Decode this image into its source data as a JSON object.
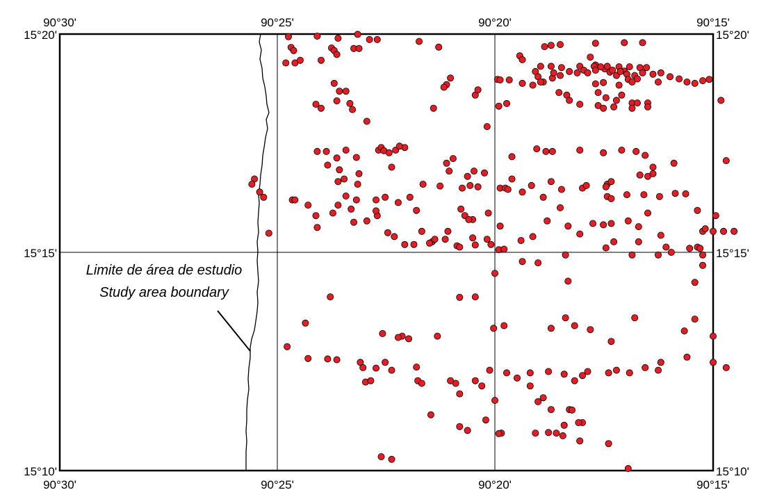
{
  "map": {
    "extent": {
      "lon_west": -90.5,
      "lon_east": -90.25,
      "lat_south": 15.1667,
      "lat_north": 15.3333
    },
    "colors": {
      "point_fill": "#e31e24",
      "point_stroke": "#000000",
      "frame": "#000000",
      "background": "#ffffff"
    },
    "top_ticks": [
      "90°30'",
      "90°25'",
      "90°20'",
      "90°15'"
    ],
    "bottom_ticks": [
      "90°30'",
      "90°25'",
      "90°20'",
      "90°15'"
    ],
    "left_ticks": [
      "15°20'",
      "15°15'",
      "15°10'"
    ],
    "right_ticks": [
      "15°20'",
      "15°15'",
      "15°10'"
    ],
    "annotation": {
      "line1": "Limite de área de estudio",
      "line2": "Study area boundary"
    },
    "grid_lines": {
      "lon": [
        -90.4167,
        -90.3333
      ],
      "lat": [
        15.25
      ]
    },
    "points": [
      [
        -90.4125,
        15.3323
      ],
      [
        -90.4015,
        15.3325
      ],
      [
        -90.3935,
        15.3317
      ],
      [
        -90.386,
        15.3332
      ],
      [
        -90.3815,
        15.3312
      ],
      [
        -90.3785,
        15.3312
      ],
      [
        -90.3625,
        15.3305
      ],
      [
        -90.355,
        15.3283
      ],
      [
        -90.3145,
        15.3285
      ],
      [
        -90.312,
        15.329
      ],
      [
        -90.3085,
        15.3293
      ],
      [
        -90.295,
        15.3298
      ],
      [
        -90.284,
        15.33
      ],
      [
        -90.277,
        15.33
      ],
      [
        -90.4115,
        15.3282
      ],
      [
        -90.4105,
        15.327
      ],
      [
        -90.396,
        15.328
      ],
      [
        -90.395,
        15.327
      ],
      [
        -90.3875,
        15.3278
      ],
      [
        -90.3855,
        15.3278
      ],
      [
        -90.4135,
        15.3223
      ],
      [
        -90.41,
        15.3223
      ],
      [
        -90.408,
        15.3233
      ],
      [
        -90.4,
        15.3233
      ],
      [
        -90.394,
        15.3255
      ],
      [
        -90.324,
        15.325
      ],
      [
        -90.323,
        15.3235
      ],
      [
        -90.316,
        15.321
      ],
      [
        -90.312,
        15.321
      ],
      [
        -90.308,
        15.3205
      ],
      [
        -90.302,
        15.3185
      ],
      [
        -90.297,
        15.3245
      ],
      [
        -90.295,
        15.3215
      ],
      [
        -90.2915,
        15.32
      ],
      [
        -90.2895,
        15.3188
      ],
      [
        -90.286,
        15.3208
      ],
      [
        -90.284,
        15.3192
      ],
      [
        -90.282,
        15.3208
      ],
      [
        -90.278,
        15.3205
      ],
      [
        -90.273,
        15.318
      ],
      [
        -90.27,
        15.3185
      ],
      [
        -90.318,
        15.319
      ],
      [
        -90.317,
        15.317
      ],
      [
        -90.315,
        15.315
      ],
      [
        -90.3115,
        15.3165
      ],
      [
        -90.311,
        15.3185
      ],
      [
        -90.3085,
        15.3175
      ],
      [
        -90.305,
        15.319
      ],
      [
        -90.301,
        15.321
      ],
      [
        -90.2995,
        15.3195
      ],
      [
        -90.298,
        15.3185
      ],
      [
        -90.2955,
        15.321
      ],
      [
        -90.295,
        15.3195
      ],
      [
        -90.293,
        15.3208
      ],
      [
        -90.2905,
        15.321
      ],
      [
        -90.2885,
        15.3195
      ],
      [
        -90.287,
        15.3175
      ],
      [
        -90.2855,
        15.319
      ],
      [
        -90.283,
        15.318
      ],
      [
        -90.28,
        15.3175
      ],
      [
        -90.277,
        15.3185
      ],
      [
        -90.2755,
        15.3205
      ],
      [
        -90.352,
        15.314
      ],
      [
        -90.3505,
        15.3165
      ],
      [
        -90.3325,
        15.316
      ],
      [
        -90.3315,
        15.3158
      ],
      [
        -90.328,
        15.3158
      ],
      [
        -90.323,
        15.3145
      ],
      [
        -90.319,
        15.3138
      ],
      [
        -90.316,
        15.315
      ],
      [
        -90.295,
        15.3143
      ],
      [
        -90.292,
        15.3148
      ],
      [
        -90.286,
        15.3138
      ],
      [
        -90.2825,
        15.316
      ],
      [
        -90.281,
        15.315
      ],
      [
        -90.279,
        15.3162
      ],
      [
        -90.271,
        15.315
      ],
      [
        -90.2665,
        15.317
      ],
      [
        -90.263,
        15.3162
      ],
      [
        -90.26,
        15.315
      ],
      [
        -90.257,
        15.3145
      ],
      [
        -90.254,
        15.3155
      ],
      [
        -90.2515,
        15.316
      ],
      [
        -90.395,
        15.3145
      ],
      [
        -90.393,
        15.3115
      ],
      [
        -90.3905,
        15.3115
      ],
      [
        -90.353,
        15.313
      ],
      [
        -90.341,
        15.31
      ],
      [
        -90.34,
        15.312
      ],
      [
        -90.309,
        15.311
      ],
      [
        -90.306,
        15.31
      ],
      [
        -90.305,
        15.308
      ],
      [
        -90.301,
        15.3065
      ],
      [
        -90.294,
        15.311
      ],
      [
        -90.291,
        15.309
      ],
      [
        -90.287,
        15.308
      ],
      [
        -90.285,
        15.31
      ],
      [
        -90.281,
        15.307
      ],
      [
        -90.279,
        15.307
      ],
      [
        -90.275,
        15.307
      ],
      [
        -90.247,
        15.308
      ],
      [
        -90.394,
        15.3078
      ],
      [
        -90.402,
        15.3065
      ],
      [
        -90.4,
        15.305
      ],
      [
        -90.389,
        15.3068
      ],
      [
        -90.357,
        15.305
      ],
      [
        -90.332,
        15.3058
      ],
      [
        -90.329,
        15.3068
      ],
      [
        -90.294,
        15.306
      ],
      [
        -90.292,
        15.305
      ],
      [
        -90.288,
        15.3055
      ],
      [
        -90.281,
        15.305
      ],
      [
        -90.275,
        15.3055
      ],
      [
        -90.388,
        15.3045
      ],
      [
        -90.3825,
        15.3
      ],
      [
        -90.3365,
        15.298
      ],
      [
        -90.3175,
        15.2895
      ],
      [
        -90.3115,
        15.2885
      ],
      [
        -90.292,
        15.288
      ],
      [
        -90.273,
        15.2825
      ],
      [
        -90.265,
        15.284
      ],
      [
        -90.4015,
        15.2885
      ],
      [
        -90.398,
        15.2885
      ],
      [
        -90.3905,
        15.289
      ],
      [
        -90.378,
        15.289
      ],
      [
        -90.377,
        15.29
      ],
      [
        -90.376,
        15.2888
      ],
      [
        -90.3715,
        15.289
      ],
      [
        -90.368,
        15.29
      ],
      [
        -90.37,
        15.2905
      ],
      [
        -90.394,
        15.286
      ],
      [
        -90.3865,
        15.2862
      ],
      [
        -90.3495,
        15.2858
      ],
      [
        -90.327,
        15.2865
      ],
      [
        -90.314,
        15.2885
      ],
      [
        -90.301,
        15.289
      ],
      [
        -90.285,
        15.289
      ],
      [
        -90.2795,
        15.2885
      ],
      [
        -90.276,
        15.287
      ],
      [
        -90.245,
        15.285
      ],
      [
        -90.393,
        15.2815
      ],
      [
        -90.3975,
        15.2833
      ],
      [
        -90.3855,
        15.28
      ],
      [
        -90.373,
        15.2825
      ],
      [
        -90.374,
        15.288
      ],
      [
        -90.352,
        15.284
      ],
      [
        -90.351,
        15.281
      ],
      [
        -90.344,
        15.279
      ],
      [
        -90.3415,
        15.281
      ],
      [
        -90.3375,
        15.2803
      ],
      [
        -90.327,
        15.278
      ],
      [
        -90.312,
        15.277
      ],
      [
        -90.2905,
        15.276
      ],
      [
        -90.289,
        15.277
      ],
      [
        -90.291,
        15.275
      ],
      [
        -90.278,
        15.2795
      ],
      [
        -90.275,
        15.279
      ],
      [
        -90.273,
        15.28
      ],
      [
        -90.3935,
        15.277
      ],
      [
        -90.3912,
        15.278
      ],
      [
        -90.386,
        15.276
      ],
      [
        -90.3545,
        15.2753
      ],
      [
        -90.346,
        15.2745
      ],
      [
        -90.343,
        15.2755
      ],
      [
        -90.34,
        15.275
      ],
      [
        -90.3315,
        15.2745
      ],
      [
        -90.3295,
        15.2745
      ],
      [
        -90.3285,
        15.274
      ],
      [
        -90.323,
        15.273
      ],
      [
        -90.3195,
        15.2755
      ],
      [
        -90.308,
        15.274
      ],
      [
        -90.3,
        15.2745
      ],
      [
        -90.2985,
        15.2755
      ],
      [
        -90.2905,
        15.2713
      ],
      [
        -90.289,
        15.2705
      ],
      [
        -90.283,
        15.272
      ],
      [
        -90.2765,
        15.272
      ],
      [
        -90.2705,
        15.2713
      ],
      [
        -90.2645,
        15.2725
      ],
      [
        -90.2605,
        15.2723
      ],
      [
        -90.4255,
        15.278
      ],
      [
        -90.4265,
        15.276
      ],
      [
        -90.4235,
        15.273
      ],
      [
        -90.3635,
        15.266
      ],
      [
        -90.3615,
        15.258
      ],
      [
        -90.342,
        15.2625
      ],
      [
        -90.3365,
        15.255
      ],
      [
        -90.3315,
        15.26
      ],
      [
        -90.319,
        15.256
      ],
      [
        -90.3135,
        15.262
      ],
      [
        -90.3085,
        15.267
      ],
      [
        -90.3055,
        15.26
      ],
      [
        -90.301,
        15.257
      ],
      [
        -90.289,
        15.261
      ],
      [
        -90.2825,
        15.262
      ],
      [
        -90.2785,
        15.2598
      ],
      [
        -90.422,
        15.271
      ],
      [
        -90.411,
        15.27
      ],
      [
        -90.41,
        15.27
      ],
      [
        -90.405,
        15.268
      ],
      [
        -90.402,
        15.264
      ],
      [
        -90.4015,
        15.2595
      ],
      [
        -90.3955,
        15.265
      ],
      [
        -90.3935,
        15.268
      ],
      [
        -90.3865,
        15.27
      ],
      [
        -90.379,
        15.27
      ],
      [
        -90.3755,
        15.271
      ],
      [
        -90.3705,
        15.269
      ],
      [
        -90.366,
        15.271
      ],
      [
        -90.361,
        15.276
      ],
      [
        -90.3465,
        15.2665
      ],
      [
        -90.345,
        15.264
      ],
      [
        -90.3435,
        15.2625
      ],
      [
        -90.315,
        15.271
      ],
      [
        -90.256,
        15.266
      ],
      [
        -90.249,
        15.264
      ],
      [
        -90.3905,
        15.2715
      ],
      [
        -90.3885,
        15.2665
      ],
      [
        -90.3825,
        15.262
      ],
      [
        -90.3875,
        15.2615
      ],
      [
        -90.3785,
        15.264
      ],
      [
        -90.379,
        15.2658
      ],
      [
        -90.3745,
        15.2575
      ],
      [
        -90.3575,
        15.254
      ],
      [
        -90.3515,
        15.258
      ],
      [
        -90.342,
        15.2555
      ],
      [
        -90.336,
        15.265
      ],
      [
        -90.296,
        15.261
      ],
      [
        -90.292,
        15.2605
      ],
      [
        -90.288,
        15.254
      ],
      [
        -90.2785,
        15.254
      ],
      [
        -90.275,
        15.265
      ],
      [
        -90.27,
        15.2565
      ],
      [
        -90.266,
        15.25
      ],
      [
        -90.259,
        15.2515
      ],
      [
        -90.254,
        15.258
      ],
      [
        -90.253,
        15.259
      ],
      [
        -90.25,
        15.258
      ],
      [
        -90.246,
        15.258
      ],
      [
        -90.242,
        15.258
      ],
      [
        -90.42,
        15.2573
      ],
      [
        -90.372,
        15.256
      ],
      [
        -90.368,
        15.253
      ],
      [
        -90.3645,
        15.253
      ],
      [
        -90.3585,
        15.2535
      ],
      [
        -90.3565,
        15.255
      ],
      [
        -90.3525,
        15.255
      ],
      [
        -90.348,
        15.2525
      ],
      [
        -90.347,
        15.252
      ],
      [
        -90.341,
        15.2528
      ],
      [
        -90.335,
        15.253
      ],
      [
        -90.332,
        15.251
      ],
      [
        -90.33,
        15.2512
      ],
      [
        -90.3235,
        15.2545
      ],
      [
        -90.3065,
        15.249
      ],
      [
        -90.291,
        15.2517
      ],
      [
        -90.281,
        15.249
      ],
      [
        -90.271,
        15.249
      ],
      [
        -90.268,
        15.252
      ],
      [
        -90.256,
        15.252
      ],
      [
        -90.255,
        15.2515
      ],
      [
        -90.254,
        15.249
      ],
      [
        -90.3965,
        15.233
      ],
      [
        -90.347,
        15.2328
      ],
      [
        -90.341,
        15.233
      ],
      [
        -90.3335,
        15.242
      ],
      [
        -90.323,
        15.2465
      ],
      [
        -90.317,
        15.246
      ],
      [
        -90.3055,
        15.239
      ],
      [
        -90.28,
        15.225
      ],
      [
        -90.257,
        15.2385
      ],
      [
        -90.254,
        15.245
      ],
      [
        -90.406,
        15.223
      ],
      [
        -90.3765,
        15.219
      ],
      [
        -90.369,
        15.218
      ],
      [
        -90.3705,
        15.2175
      ],
      [
        -90.3665,
        15.217
      ],
      [
        -90.3555,
        15.218
      ],
      [
        -90.334,
        15.221
      ],
      [
        -90.33,
        15.222
      ],
      [
        -90.312,
        15.221
      ],
      [
        -90.3065,
        15.225
      ],
      [
        -90.303,
        15.222
      ],
      [
        -90.297,
        15.2205
      ],
      [
        -90.289,
        15.216
      ],
      [
        -90.261,
        15.22
      ],
      [
        -90.257,
        15.2245
      ],
      [
        -90.25,
        15.218
      ],
      [
        -90.413,
        15.214
      ],
      [
        -90.405,
        15.2095
      ],
      [
        -90.3975,
        15.2093
      ],
      [
        -90.394,
        15.209
      ],
      [
        -90.385,
        15.208
      ],
      [
        -90.384,
        15.206
      ],
      [
        -90.379,
        15.2058
      ],
      [
        -90.3755,
        15.208
      ],
      [
        -90.373,
        15.205
      ],
      [
        -90.3635,
        15.2062
      ],
      [
        -90.3485,
        15.2
      ],
      [
        -90.341,
        15.201
      ],
      [
        -90.3355,
        15.205
      ],
      [
        -90.329,
        15.204
      ],
      [
        -90.32,
        15.204
      ],
      [
        -90.313,
        15.2045
      ],
      [
        -90.307,
        15.2035
      ],
      [
        -90.3,
        15.203
      ],
      [
        -90.298,
        15.2045
      ],
      [
        -90.29,
        15.204
      ],
      [
        -90.287,
        15.205
      ],
      [
        -90.282,
        15.204
      ],
      [
        -90.276,
        15.206
      ],
      [
        -90.271,
        15.205
      ],
      [
        -90.27,
        15.208
      ],
      [
        -90.26,
        15.21
      ],
      [
        -90.25,
        15.208
      ],
      [
        -90.245,
        15.206
      ],
      [
        -90.383,
        15.2005
      ],
      [
        -90.381,
        15.201
      ],
      [
        -90.363,
        15.201
      ],
      [
        -90.3615,
        15.2
      ],
      [
        -90.3505,
        15.201
      ],
      [
        -90.347,
        15.196
      ],
      [
        -90.3385,
        15.199
      ],
      [
        -90.3335,
        15.1935
      ],
      [
        -90.325,
        15.202
      ],
      [
        -90.32,
        15.199
      ],
      [
        -90.317,
        15.193
      ],
      [
        -90.315,
        15.1945
      ],
      [
        -90.312,
        15.19
      ],
      [
        -90.303,
        15.201
      ],
      [
        -90.305,
        15.19
      ],
      [
        -90.304,
        15.1898
      ],
      [
        -90.358,
        15.188
      ],
      [
        -90.337,
        15.186
      ],
      [
        -90.331,
        15.181
      ],
      [
        -90.318,
        15.181
      ],
      [
        -90.307,
        15.184
      ],
      [
        -90.3,
        15.185
      ],
      [
        -90.347,
        15.1835
      ],
      [
        -90.344,
        15.182
      ],
      [
        -90.332,
        15.1808
      ],
      [
        -90.313,
        15.1812
      ],
      [
        -90.31,
        15.181
      ],
      [
        -90.3075,
        15.18
      ],
      [
        -90.3015,
        15.185
      ],
      [
        -90.301,
        15.178
      ],
      [
        -90.29,
        15.177
      ],
      [
        -90.377,
        15.172
      ],
      [
        -90.373,
        15.171
      ],
      [
        -90.2825,
        15.1675
      ]
    ]
  }
}
